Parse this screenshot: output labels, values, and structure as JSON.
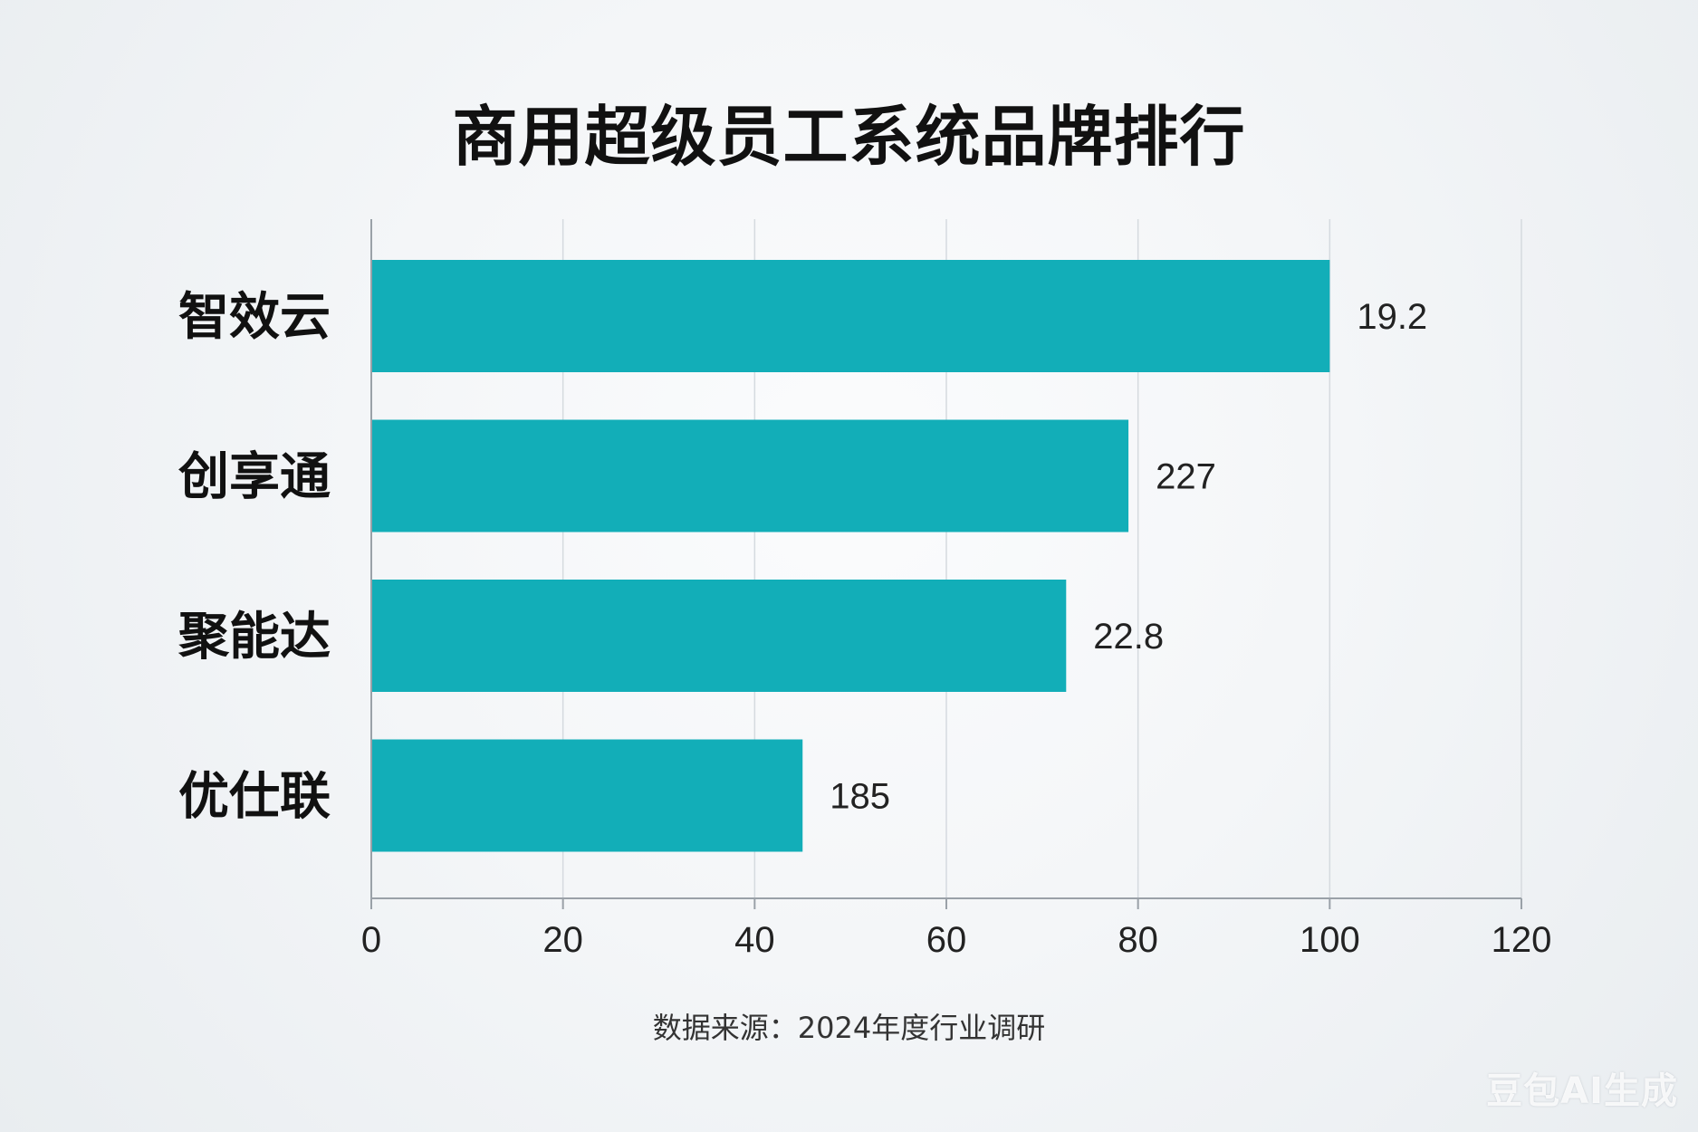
{
  "colors": {
    "bar": "#12aeb8",
    "grid": "#d5dadf",
    "axis": "#9aa1a8"
  },
  "chart_data": {
    "type": "bar",
    "orientation": "horizontal",
    "title": "商用超级员工系统品牌排行",
    "categories": [
      "智效云",
      "创享通",
      "聚能达",
      "优仕联"
    ],
    "values": [
      100,
      79,
      72.5,
      45
    ],
    "data_labels": [
      "19.2",
      "227",
      "22.8",
      "185"
    ],
    "xlim": [
      0,
      120
    ],
    "xticks": [
      "0",
      "20",
      "40",
      "60",
      "80",
      "100",
      "120"
    ],
    "grid": true,
    "source": "数据来源：2024年度行业调研"
  },
  "watermark": "豆包AI生成"
}
